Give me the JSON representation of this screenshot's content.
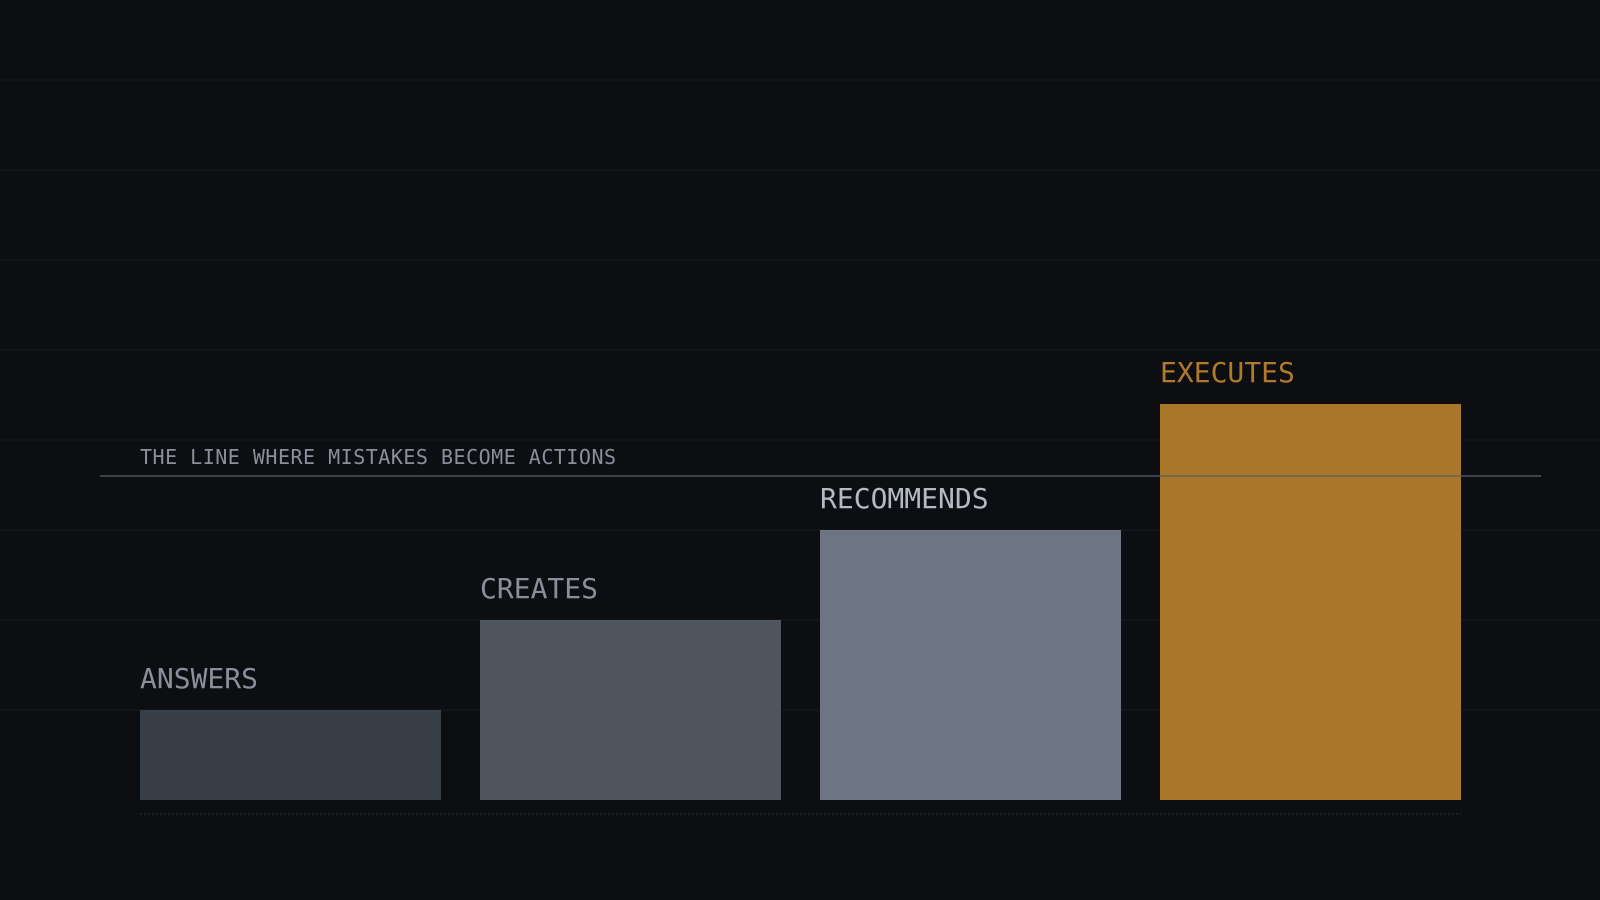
{
  "chart_data": {
    "type": "bar",
    "categories": [
      "ANSWERS",
      "CREATES",
      "RECOMMENDS",
      "EXECUTES"
    ],
    "values": [
      1,
      2,
      3,
      4.4
    ],
    "ylim": [
      0,
      8
    ],
    "grid": true,
    "threshold": {
      "value": 3.6,
      "label": "THE LINE WHERE MISTAKES BECOME ACTIONS"
    },
    "colors": {
      "background": "#0c0e12",
      "bars": [
        "#383e46",
        "#4e555f",
        "#6d7482",
        "#a8772a"
      ],
      "labels": [
        "#8a909b",
        "#8a909b",
        "#b4bac4",
        "#b07a2a"
      ],
      "threshold_line": "#5b6068",
      "threshold_label": "#8a909b",
      "gridline": "#161a20",
      "baseline": "#2a2f37"
    }
  }
}
